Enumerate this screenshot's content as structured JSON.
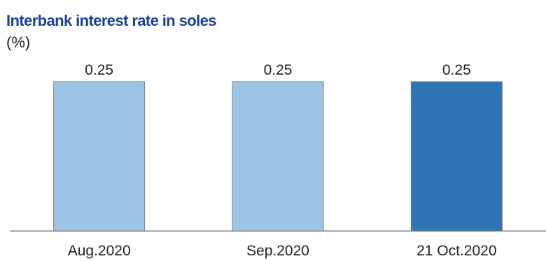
{
  "chart_data": {
    "type": "bar",
    "title": "Interbank interest rate in soles",
    "subtitle": "(%)",
    "categories": [
      "Aug.2020",
      "Sep.2020",
      "21 Oct.2020"
    ],
    "values": [
      0.25,
      0.25,
      0.25
    ],
    "data_labels": [
      "0.25",
      "0.25",
      "0.25"
    ],
    "ylim": [
      0,
      0.25
    ],
    "grid": false,
    "legend": "none",
    "colors": {
      "bars": [
        "#9dc3e6",
        "#9dc3e6",
        "#2e75b6"
      ],
      "bar_border": "#7f7f7f",
      "axis": "#8c8c8c",
      "title": "#1f3f93",
      "text": "#222222"
    }
  }
}
